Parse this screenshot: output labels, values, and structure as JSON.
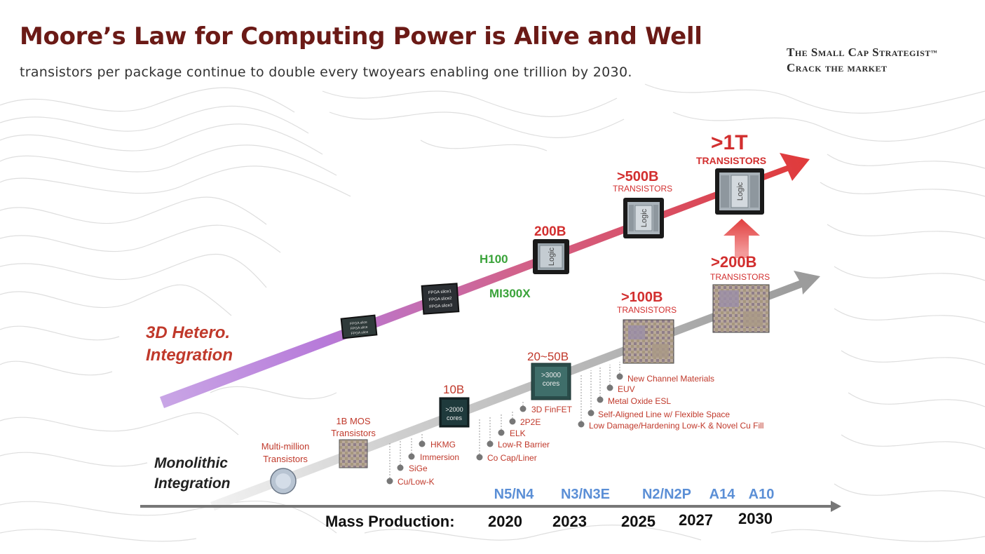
{
  "header": {
    "title": "Moore’s Law for Computing Power is Alive and Well",
    "subtitle": "transistors per package continue to double every twoyears enabling one trillion by 2030.",
    "brand_line1": "The Small Cap Strategist",
    "brand_tm": "™",
    "brand_line2": "Crack the market"
  },
  "colors": {
    "title": "#6b1a16",
    "hetero_label": "#c0392b",
    "green_label": "#3aa33a",
    "node_label": "#5b8fd6",
    "feature_text": "#c0392b"
  },
  "diagram": {
    "hetero": {
      "label_line1": "3D Hetero.",
      "label_line2": "Integration",
      "h100": "H100",
      "mi300x": "MI300X",
      "chip1_lines": [
        "FPGA slice",
        "FPGA slice",
        "FPGA slice"
      ],
      "chip2_lines": [
        "FPGA slice1",
        "FPGA slice2",
        "FPGA slice3"
      ],
      "b200_value": "200B",
      "b200_chip": "Logic",
      "b500_value": ">500B",
      "b500_unit": "TRANSISTORS",
      "b500_chip": "Logic",
      "t1_value": ">1T",
      "t1_unit": "TRANSISTORS",
      "t1_chip": "Logic"
    },
    "mono": {
      "label_line1": "Monolithic",
      "label_line2": "Integration",
      "multi_line1": "Multi-million",
      "multi_line2": "Transistors",
      "mos_line1": "1B MOS",
      "mos_line2": "Transistors",
      "b10_value": "10B",
      "b10_chip_line1": ">2000",
      "b10_chip_line2": "cores",
      "b2050_value": "20~50B",
      "b2050_chip_line1": ">3000",
      "b2050_chip_line2": "cores",
      "b100_value": ">100B",
      "b100_unit": "TRANSISTORS",
      "b200_value": ">200B",
      "b200_unit": "TRANSISTORS"
    },
    "features": {
      "group1": [
        "HKMG",
        "Immersion",
        "SiGe",
        "Cu/Low-K"
      ],
      "group2": [
        "3D FinFET",
        "2P2E",
        "ELK",
        "Low-R Barrier",
        "Co Cap/Liner"
      ],
      "group3": [
        "New Channel Materials",
        "EUV",
        "Metal Oxide ESL",
        "Self-Aligned Line w/ Flexible Space",
        "Low Damage/Hardening Low-K & Novel Cu Fill"
      ]
    },
    "nodes": [
      "N5/N4",
      "N3/N3E",
      "N2/N2P",
      "A14",
      "A10"
    ],
    "axis": {
      "prefix": "Mass Production:",
      "years": [
        "2020",
        "2023",
        "2025",
        "2027",
        "2030"
      ]
    }
  }
}
